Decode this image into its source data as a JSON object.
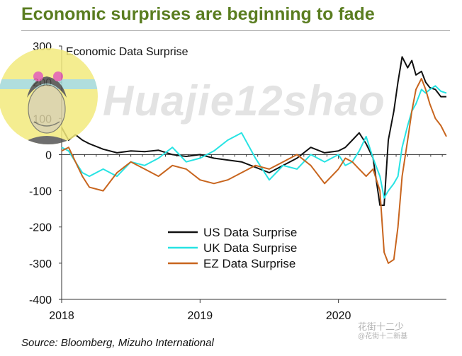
{
  "header": {
    "title": "Economic surprises are beginning to fade"
  },
  "footer": {
    "source": "Source: Bloomberg, Mizuho International"
  },
  "watermark": {
    "text": "Huajie12shao",
    "bottom_text": "花街十二少",
    "bottom_subtext": "@花街十二新基",
    "avatar_label": "avatar"
  },
  "colors": {
    "title": "#5a7d20",
    "us": "#111111",
    "uk": "#27e3e3",
    "ez": "#c8651e",
    "axis": "#333333"
  },
  "chart_data": {
    "type": "line",
    "title": "Economic Data Surprise",
    "xlabel": "",
    "ylabel": "",
    "xlim": [
      2018.0,
      2020.78
    ],
    "ylim": [
      -400,
      300
    ],
    "xticks": [
      2018,
      2019,
      2020
    ],
    "xtick_labels": [
      "2018",
      "2019",
      "2020"
    ],
    "yticks": [
      300,
      200,
      100,
      0,
      -100,
      -200,
      -300,
      -400
    ],
    "ytick_labels": [
      "300",
      "200",
      "100",
      "0",
      "-100",
      "-200",
      "-300",
      "-400"
    ],
    "legend_position": "bottom-center",
    "series": [
      {
        "name": "US Data Surprise",
        "color": "#111111",
        "x": [
          2018.0,
          2018.05,
          2018.1,
          2018.15,
          2018.2,
          2018.3,
          2018.4,
          2018.5,
          2018.6,
          2018.7,
          2018.8,
          2018.9,
          2019.0,
          2019.1,
          2019.2,
          2019.3,
          2019.4,
          2019.5,
          2019.6,
          2019.7,
          2019.8,
          2019.9,
          2020.0,
          2020.05,
          2020.1,
          2020.15,
          2020.2,
          2020.25,
          2020.3,
          2020.33,
          2020.36,
          2020.4,
          2020.43,
          2020.46,
          2020.5,
          2020.53,
          2020.56,
          2020.6,
          2020.63,
          2020.66,
          2020.7,
          2020.74,
          2020.78
        ],
        "y": [
          75,
          40,
          55,
          40,
          30,
          15,
          5,
          10,
          8,
          12,
          0,
          -5,
          0,
          -10,
          -15,
          -20,
          -35,
          -50,
          -30,
          -10,
          20,
          5,
          10,
          20,
          40,
          60,
          30,
          -10,
          -140,
          -140,
          40,
          120,
          200,
          270,
          240,
          260,
          220,
          230,
          200,
          185,
          180,
          160,
          160
        ]
      },
      {
        "name": "UK Data Surprise",
        "color": "#27e3e3",
        "x": [
          2018.0,
          2018.05,
          2018.1,
          2018.15,
          2018.2,
          2018.3,
          2018.4,
          2018.5,
          2018.6,
          2018.7,
          2018.8,
          2018.9,
          2019.0,
          2019.1,
          2019.2,
          2019.3,
          2019.4,
          2019.5,
          2019.6,
          2019.7,
          2019.8,
          2019.9,
          2020.0,
          2020.05,
          2020.1,
          2020.15,
          2020.2,
          2020.25,
          2020.3,
          2020.33,
          2020.36,
          2020.4,
          2020.43,
          2020.46,
          2020.5,
          2020.53,
          2020.56,
          2020.6,
          2020.63,
          2020.66,
          2020.7,
          2020.74,
          2020.78
        ],
        "y": [
          20,
          10,
          -20,
          -50,
          -60,
          -40,
          -60,
          -20,
          -30,
          -10,
          20,
          -20,
          -10,
          10,
          40,
          60,
          -10,
          -70,
          -30,
          -40,
          0,
          -20,
          0,
          -30,
          -20,
          10,
          50,
          -10,
          -60,
          -120,
          -100,
          -80,
          -60,
          20,
          80,
          120,
          140,
          180,
          170,
          180,
          190,
          175,
          170
        ]
      },
      {
        "name": "EZ Data Surprise",
        "color": "#c8651e",
        "x": [
          2018.0,
          2018.05,
          2018.1,
          2018.15,
          2018.2,
          2018.3,
          2018.4,
          2018.5,
          2018.6,
          2018.7,
          2018.8,
          2018.9,
          2019.0,
          2019.1,
          2019.2,
          2019.3,
          2019.4,
          2019.5,
          2019.6,
          2019.7,
          2019.8,
          2019.9,
          2020.0,
          2020.05,
          2020.1,
          2020.15,
          2020.2,
          2020.25,
          2020.3,
          2020.33,
          2020.36,
          2020.4,
          2020.43,
          2020.46,
          2020.5,
          2020.53,
          2020.56,
          2020.6,
          2020.63,
          2020.66,
          2020.7,
          2020.74,
          2020.78
        ],
        "y": [
          10,
          20,
          -20,
          -60,
          -90,
          -100,
          -50,
          -20,
          -40,
          -60,
          -30,
          -40,
          -70,
          -80,
          -70,
          -50,
          -30,
          -40,
          -20,
          0,
          -30,
          -80,
          -40,
          -10,
          -20,
          -40,
          -60,
          -40,
          -100,
          -270,
          -300,
          -290,
          -200,
          -60,
          40,
          120,
          180,
          210,
          180,
          140,
          100,
          80,
          50
        ]
      }
    ]
  }
}
